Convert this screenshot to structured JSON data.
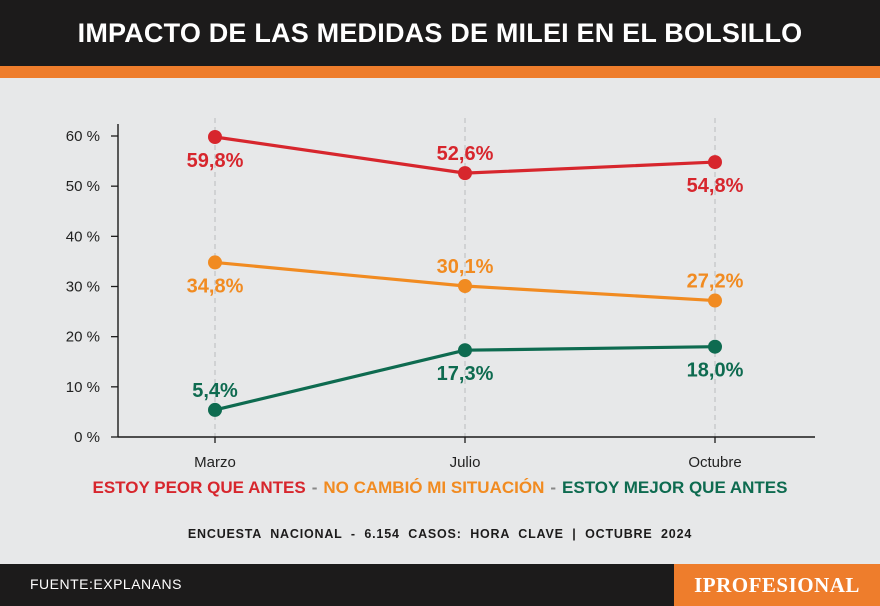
{
  "header": {
    "title": "IMPACTO DE LAS MEDIDAS DE MILEI EN EL BOLSILLO"
  },
  "colors": {
    "red": "#d7262d",
    "orange": "#f18b21",
    "green": "#0e6b50",
    "header_bg": "#1c1b1b",
    "accent": "#ee7d2c",
    "background": "#e7e8e9"
  },
  "chart_data": {
    "type": "line",
    "title": "IMPACTO DE LAS MEDIDAS DE MILEI EN EL BOLSILLO",
    "categories": [
      "Marzo",
      "Julio",
      "Octubre"
    ],
    "ylim": [
      0,
      60
    ],
    "yticks": [
      0,
      10,
      20,
      30,
      40,
      50,
      60
    ],
    "ytick_labels": [
      "0 %",
      "10 %",
      "20 %",
      "30 %",
      "40 %",
      "50 %",
      "60 %"
    ],
    "grid": true,
    "series": [
      {
        "name": "ESTOY PEOR QUE ANTES",
        "color": "#d7262d",
        "values": [
          59.8,
          52.6,
          54.8
        ],
        "labels": [
          "59,8%",
          "52,6%",
          "54,8%"
        ],
        "label_pos": [
          "below",
          "above",
          "below"
        ]
      },
      {
        "name": "NO CAMBIÓ MI SITUACIÓN",
        "color": "#f18b21",
        "values": [
          34.8,
          30.1,
          27.2
        ],
        "labels": [
          "34,8%",
          "30,1%",
          "27,2%"
        ],
        "label_pos": [
          "below",
          "above",
          "above"
        ]
      },
      {
        "name": "ESTOY MEJOR QUE ANTES",
        "color": "#0e6b50",
        "values": [
          5.4,
          17.3,
          18.0
        ],
        "labels": [
          "5,4%",
          "17,3%",
          "18,0%"
        ],
        "label_pos": [
          "above",
          "below",
          "below"
        ]
      }
    ]
  },
  "legend": {
    "separator": "-",
    "items": [
      {
        "label": "ESTOY PEOR QUE ANTES",
        "color": "#d7262d"
      },
      {
        "label": "NO CAMBIÓ MI SITUACIÓN",
        "color": "#f18b21"
      },
      {
        "label": "ESTOY MEJOR QUE ANTES",
        "color": "#0e6b50"
      }
    ]
  },
  "survey_note": "ENCUESTA  NACIONAL  -  6.154  CASOS:  HORA  CLAVE  |  OCTUBRE  2024",
  "footer": {
    "source": "FUENTE:EXPLANANS",
    "brand": "IPROFESIONAL"
  }
}
